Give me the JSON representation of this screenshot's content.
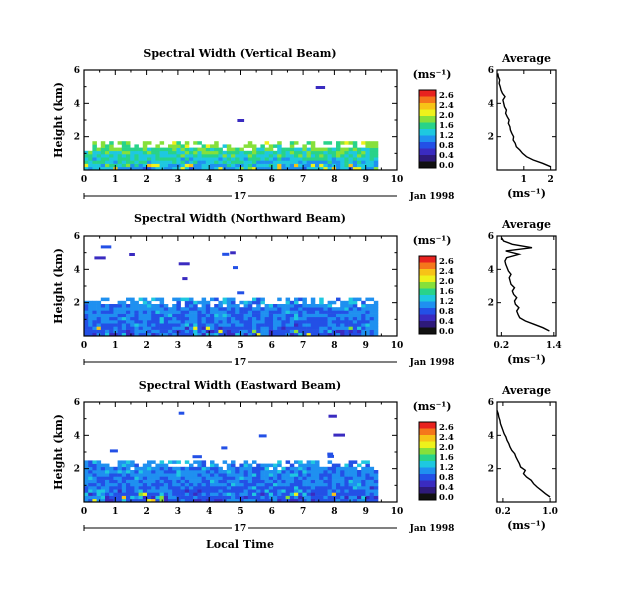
{
  "chart_data": {
    "type": "heatmap",
    "shared": {
      "xlabel": "Local Time",
      "x_ticks": [
        "0",
        "1",
        "2",
        "3",
        "4",
        "5",
        "6",
        "7",
        "8",
        "9",
        "10"
      ],
      "x_range": [
        0,
        10
      ],
      "day_label": "17",
      "date_label": "Jan 1998",
      "ylabel": "Height (km)",
      "y_ticks": [
        "2",
        "4",
        "6"
      ],
      "y_range": [
        0,
        6
      ],
      "colorbar_unit": "(ms⁻¹)",
      "colorbar_ticks": [
        "2.6",
        "2.4",
        "2.0",
        "1.6",
        "1.2",
        "0.8",
        "0.4",
        "0.0"
      ],
      "colorbar_colors": [
        "#e8221f",
        "#f5761b",
        "#f7c317",
        "#eef21b",
        "#86e03a",
        "#28d389",
        "#1ec8e0",
        "#1f90f0",
        "#2350e6",
        "#3a2bc0",
        "#2e1a7a",
        "#111111"
      ],
      "profile_title": "Average",
      "profile_xlabel": "(ms⁻¹)"
    },
    "panels": [
      {
        "title": "Spectral Width (Vertical Beam)",
        "data_end_hour": 9.3,
        "top_height_km": 1.6,
        "avg_profile": {
          "x_ticks": [
            "1",
            "2"
          ],
          "x_range": [
            0,
            2.2
          ],
          "heights_km": [
            0.2,
            0.4,
            0.6,
            0.8,
            1.0,
            1.2,
            1.4,
            1.6,
            1.8,
            2.0,
            2.2,
            2.4,
            2.6,
            2.8,
            3.0,
            3.2,
            3.4,
            3.6,
            3.8,
            4.0,
            4.2,
            4.4,
            4.6,
            4.8,
            5.0,
            5.2,
            5.4,
            5.6,
            5.8
          ],
          "values": [
            2.0,
            1.7,
            1.35,
            1.1,
            0.95,
            0.85,
            0.72,
            0.68,
            0.6,
            0.62,
            0.55,
            0.5,
            0.48,
            0.42,
            0.45,
            0.38,
            0.32,
            0.35,
            0.28,
            0.25,
            0.22,
            0.3,
            0.2,
            0.15,
            0.12,
            0.08,
            0.1,
            0.05,
            0.03
          ]
        }
      },
      {
        "title": "Spectral Width (Northward Beam)",
        "data_end_hour": 9.3,
        "top_height_km": 2.2,
        "avg_profile": {
          "x_ticks": [
            "0.2",
            "1.4"
          ],
          "x_range": [
            0.1,
            1.45
          ],
          "heights_km": [
            0.3,
            0.5,
            0.7,
            0.9,
            1.1,
            1.3,
            1.5,
            1.7,
            1.9,
            2.1,
            2.3,
            2.5,
            2.7,
            2.9,
            3.1,
            3.3,
            3.5,
            3.7,
            3.9,
            4.1,
            4.3,
            4.5,
            4.7,
            4.9,
            5.1,
            5.3,
            5.5,
            5.7,
            5.9
          ],
          "values": [
            1.3,
            1.15,
            0.95,
            0.75,
            0.62,
            0.58,
            0.55,
            0.6,
            0.52,
            0.5,
            0.55,
            0.48,
            0.45,
            0.5,
            0.42,
            0.4,
            0.38,
            0.42,
            0.36,
            0.33,
            0.3,
            0.28,
            0.32,
            0.6,
            0.3,
            0.9,
            0.45,
            0.25,
            0.2
          ]
        }
      },
      {
        "title": "Spectral Width (Eastward Beam)",
        "data_end_hour": 9.3,
        "top_height_km": 2.4,
        "avg_profile": {
          "x_ticks": [
            "0.2",
            "1.0"
          ],
          "x_range": [
            0.1,
            1.1
          ],
          "heights_km": [
            0.3,
            0.5,
            0.7,
            0.9,
            1.1,
            1.3,
            1.5,
            1.7,
            1.9,
            2.1,
            2.3,
            2.5,
            2.7,
            2.9,
            3.1,
            3.3,
            3.5,
            3.7,
            3.9,
            4.1,
            4.3,
            4.5,
            4.7,
            4.9,
            5.1,
            5.3,
            5.5
          ],
          "values": [
            1.0,
            0.92,
            0.85,
            0.78,
            0.72,
            0.68,
            0.6,
            0.55,
            0.58,
            0.5,
            0.48,
            0.45,
            0.42,
            0.4,
            0.35,
            0.32,
            0.3,
            0.27,
            0.25,
            0.22,
            0.2,
            0.18,
            0.16,
            0.15,
            0.13,
            0.12,
            0.1
          ]
        }
      }
    ]
  }
}
